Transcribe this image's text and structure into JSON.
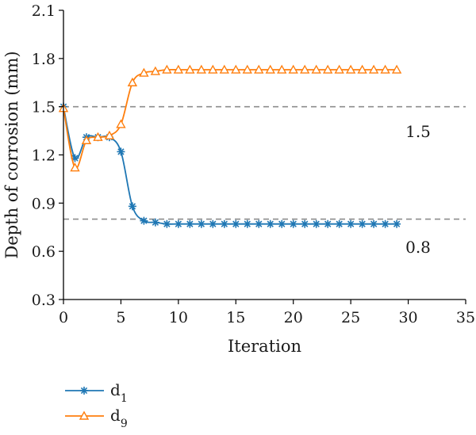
{
  "chart_data": {
    "type": "line",
    "xlabel": "Iteration",
    "ylabel": "Depth of corrosion (mm)",
    "xlim": [
      0,
      35
    ],
    "ylim": [
      0.3,
      2.1
    ],
    "xticks": [
      0,
      5,
      10,
      15,
      20,
      25,
      30,
      35
    ],
    "yticks": [
      0.3,
      0.6,
      0.9,
      1.2,
      1.5,
      1.8,
      2.1
    ],
    "ytick_labels": [
      "0.3",
      "0.6",
      "0.9",
      "1.2",
      "1.5",
      "1.8",
      "2.1"
    ],
    "reference_lines": [
      {
        "y": 1.5,
        "label": "1.5",
        "color": "#8c8c8c",
        "style": "dashed"
      },
      {
        "y": 0.8,
        "label": "0.8",
        "color": "#8c8c8c",
        "style": "dashed"
      }
    ],
    "series": [
      {
        "name": "d",
        "subscript": "1",
        "color": "#1f77b4",
        "marker": "star",
        "x": [
          0,
          1,
          2,
          3,
          4,
          5,
          6,
          7,
          8,
          9,
          10,
          11,
          12,
          13,
          14,
          15,
          16,
          17,
          18,
          19,
          20,
          21,
          22,
          23,
          24,
          25,
          26,
          27,
          28,
          29
        ],
        "values": [
          1.5,
          1.18,
          1.31,
          1.31,
          1.31,
          1.22,
          0.88,
          0.79,
          0.78,
          0.77,
          0.77,
          0.77,
          0.77,
          0.77,
          0.77,
          0.77,
          0.77,
          0.77,
          0.77,
          0.77,
          0.77,
          0.77,
          0.77,
          0.77,
          0.77,
          0.77,
          0.77,
          0.77,
          0.77,
          0.77
        ]
      },
      {
        "name": "d",
        "subscript": "9",
        "color": "#ff7f0e",
        "marker": "triangle",
        "x": [
          0,
          1,
          2,
          3,
          4,
          5,
          6,
          7,
          8,
          9,
          10,
          11,
          12,
          13,
          14,
          15,
          16,
          17,
          18,
          19,
          20,
          21,
          22,
          23,
          24,
          25,
          26,
          27,
          28,
          29
        ],
        "values": [
          1.49,
          1.12,
          1.29,
          1.31,
          1.32,
          1.39,
          1.65,
          1.71,
          1.72,
          1.73,
          1.73,
          1.73,
          1.73,
          1.73,
          1.73,
          1.73,
          1.73,
          1.73,
          1.73,
          1.73,
          1.73,
          1.73,
          1.73,
          1.73,
          1.73,
          1.73,
          1.73,
          1.73,
          1.73,
          1.73
        ]
      }
    ],
    "legend": "bottom-left",
    "grid": false
  }
}
